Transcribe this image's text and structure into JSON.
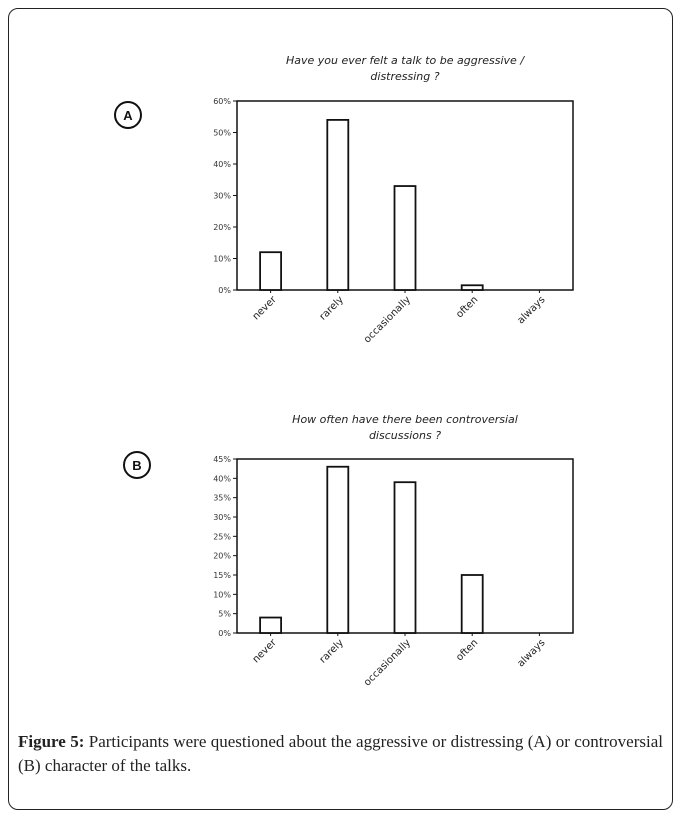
{
  "chart_data": [
    {
      "type": "bar",
      "panel": "A",
      "title_lines": [
        "Have you ever felt a talk to be aggressive /",
        "distressing ?"
      ],
      "categories": [
        "never",
        "rarely",
        "occasionally",
        "often",
        "always"
      ],
      "values": [
        12,
        54,
        33,
        1.5,
        0
      ],
      "ylim": [
        0,
        60
      ],
      "yticks": [
        "0%",
        "10%",
        "20%",
        "30%",
        "40%",
        "50%",
        "60%"
      ],
      "ytick_values": [
        0,
        10,
        20,
        30,
        40,
        50,
        60
      ]
    },
    {
      "type": "bar",
      "panel": "B",
      "title_lines": [
        "How often have there been controversial",
        "discussions ?"
      ],
      "categories": [
        "never",
        "rarely",
        "occasionally",
        "often",
        "always"
      ],
      "values": [
        4,
        43,
        39,
        15,
        0
      ],
      "ylim": [
        0,
        45
      ],
      "yticks": [
        "0%",
        "5%",
        "10%",
        "15%",
        "20%",
        "25%",
        "30%",
        "35%",
        "40%",
        "45%"
      ],
      "ytick_values": [
        0,
        5,
        10,
        15,
        20,
        25,
        30,
        35,
        40,
        45
      ]
    }
  ],
  "caption": {
    "label": "Figure 5:",
    "text": " Participants were questioned about the aggressive or distressing (A) or controversial (B) character of the talks."
  }
}
